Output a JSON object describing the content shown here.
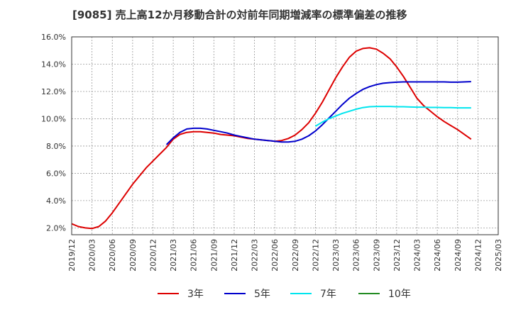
{
  "title": "[9085]  売上高12か月移動合計の対前年同期増減率の標準偏差の推移",
  "chart_data": {
    "type": "line",
    "title": "[9085]  売上高12か月移動合計の対前年同期増減率の標準偏差の推移",
    "xlabel": "",
    "ylabel": "",
    "x_ticks": [
      "2019/12",
      "2020/03",
      "2020/06",
      "2020/09",
      "2020/12",
      "2021/03",
      "2021/06",
      "2021/09",
      "2021/12",
      "2022/03",
      "2022/06",
      "2022/09",
      "2022/12",
      "2023/03",
      "2023/06",
      "2023/09",
      "2023/12",
      "2024/03",
      "2024/06",
      "2024/09",
      "2024/12",
      "2025/03"
    ],
    "y_ticks": [
      "2.0%",
      "4.0%",
      "6.0%",
      "8.0%",
      "10.0%",
      "12.0%",
      "14.0%",
      "16.0%"
    ],
    "ylim": [
      1.5,
      16.0
    ],
    "grid": true,
    "legend_position": "bottom",
    "series": [
      {
        "name": "3年",
        "color": "#dd0000",
        "points": [
          [
            "2019/12",
            2.3
          ],
          [
            "2020/01",
            2.1
          ],
          [
            "2020/02",
            2.0
          ],
          [
            "2020/03",
            1.95
          ],
          [
            "2020/04",
            2.1
          ],
          [
            "2020/05",
            2.5
          ],
          [
            "2020/06",
            3.1
          ],
          [
            "2020/07",
            3.8
          ],
          [
            "2020/08",
            4.5
          ],
          [
            "2020/09",
            5.2
          ],
          [
            "2020/10",
            5.8
          ],
          [
            "2020/11",
            6.4
          ],
          [
            "2020/12",
            6.9
          ],
          [
            "2021/01",
            7.4
          ],
          [
            "2021/02",
            7.9
          ],
          [
            "2021/03",
            8.5
          ],
          [
            "2021/04",
            8.85
          ],
          [
            "2021/05",
            9.0
          ],
          [
            "2021/06",
            9.05
          ],
          [
            "2021/07",
            9.05
          ],
          [
            "2021/08",
            9.0
          ],
          [
            "2021/09",
            8.95
          ],
          [
            "2021/10",
            8.85
          ],
          [
            "2021/11",
            8.8
          ],
          [
            "2021/12",
            8.75
          ],
          [
            "2022/01",
            8.65
          ],
          [
            "2022/02",
            8.55
          ],
          [
            "2022/03",
            8.5
          ],
          [
            "2022/04",
            8.45
          ],
          [
            "2022/05",
            8.4
          ],
          [
            "2022/06",
            8.35
          ],
          [
            "2022/07",
            8.4
          ],
          [
            "2022/08",
            8.55
          ],
          [
            "2022/09",
            8.8
          ],
          [
            "2022/10",
            9.2
          ],
          [
            "2022/11",
            9.7
          ],
          [
            "2022/12",
            10.4
          ],
          [
            "2023/01",
            11.2
          ],
          [
            "2023/02",
            12.1
          ],
          [
            "2023/03",
            13.0
          ],
          [
            "2023/04",
            13.8
          ],
          [
            "2023/05",
            14.5
          ],
          [
            "2023/06",
            14.95
          ],
          [
            "2023/07",
            15.15
          ],
          [
            "2023/08",
            15.2
          ],
          [
            "2023/09",
            15.1
          ],
          [
            "2023/10",
            14.8
          ],
          [
            "2023/11",
            14.4
          ],
          [
            "2023/12",
            13.8
          ],
          [
            "2024/01",
            13.1
          ],
          [
            "2024/02",
            12.3
          ],
          [
            "2024/03",
            11.5
          ],
          [
            "2024/04",
            10.95
          ],
          [
            "2024/05",
            10.55
          ],
          [
            "2024/06",
            10.15
          ],
          [
            "2024/07",
            9.8
          ],
          [
            "2024/08",
            9.5
          ],
          [
            "2024/09",
            9.2
          ],
          [
            "2024/10",
            8.85
          ],
          [
            "2024/11",
            8.5
          ]
        ]
      },
      {
        "name": "5年",
        "color": "#0000cc",
        "points": [
          [
            "2021/02",
            8.1
          ],
          [
            "2021/03",
            8.6
          ],
          [
            "2021/04",
            9.0
          ],
          [
            "2021/05",
            9.25
          ],
          [
            "2021/06",
            9.3
          ],
          [
            "2021/07",
            9.3
          ],
          [
            "2021/08",
            9.25
          ],
          [
            "2021/09",
            9.15
          ],
          [
            "2021/10",
            9.05
          ],
          [
            "2021/11",
            8.95
          ],
          [
            "2021/12",
            8.8
          ],
          [
            "2022/01",
            8.7
          ],
          [
            "2022/02",
            8.6
          ],
          [
            "2022/03",
            8.5
          ],
          [
            "2022/04",
            8.45
          ],
          [
            "2022/05",
            8.4
          ],
          [
            "2022/06",
            8.35
          ],
          [
            "2022/07",
            8.3
          ],
          [
            "2022/08",
            8.3
          ],
          [
            "2022/09",
            8.35
          ],
          [
            "2022/10",
            8.5
          ],
          [
            "2022/11",
            8.75
          ],
          [
            "2022/12",
            9.1
          ],
          [
            "2023/01",
            9.55
          ],
          [
            "2023/02",
            10.05
          ],
          [
            "2023/03",
            10.55
          ],
          [
            "2023/04",
            11.05
          ],
          [
            "2023/05",
            11.5
          ],
          [
            "2023/06",
            11.85
          ],
          [
            "2023/07",
            12.15
          ],
          [
            "2023/08",
            12.35
          ],
          [
            "2023/09",
            12.5
          ],
          [
            "2023/10",
            12.6
          ],
          [
            "2023/11",
            12.65
          ],
          [
            "2023/12",
            12.68
          ],
          [
            "2024/01",
            12.7
          ],
          [
            "2024/02",
            12.7
          ],
          [
            "2024/03",
            12.7
          ],
          [
            "2024/04",
            12.7
          ],
          [
            "2024/05",
            12.7
          ],
          [
            "2024/06",
            12.7
          ],
          [
            "2024/07",
            12.7
          ],
          [
            "2024/08",
            12.68
          ],
          [
            "2024/09",
            12.68
          ],
          [
            "2024/10",
            12.7
          ],
          [
            "2024/11",
            12.72
          ]
        ]
      },
      {
        "name": "7年",
        "color": "#00e5ee",
        "points": [
          [
            "2022/12",
            9.45
          ],
          [
            "2023/01",
            9.75
          ],
          [
            "2023/02",
            10.0
          ],
          [
            "2023/03",
            10.2
          ],
          [
            "2023/04",
            10.4
          ],
          [
            "2023/05",
            10.55
          ],
          [
            "2023/06",
            10.7
          ],
          [
            "2023/07",
            10.82
          ],
          [
            "2023/08",
            10.88
          ],
          [
            "2023/09",
            10.9
          ],
          [
            "2023/10",
            10.9
          ],
          [
            "2023/11",
            10.9
          ],
          [
            "2023/12",
            10.88
          ],
          [
            "2024/01",
            10.88
          ],
          [
            "2024/02",
            10.86
          ],
          [
            "2024/03",
            10.85
          ],
          [
            "2024/04",
            10.85
          ],
          [
            "2024/05",
            10.83
          ],
          [
            "2024/06",
            10.83
          ],
          [
            "2024/07",
            10.82
          ],
          [
            "2024/08",
            10.82
          ],
          [
            "2024/09",
            10.8
          ],
          [
            "2024/10",
            10.8
          ],
          [
            "2024/11",
            10.8
          ]
        ]
      },
      {
        "name": "10年",
        "color": "#228b22",
        "points": []
      }
    ]
  }
}
